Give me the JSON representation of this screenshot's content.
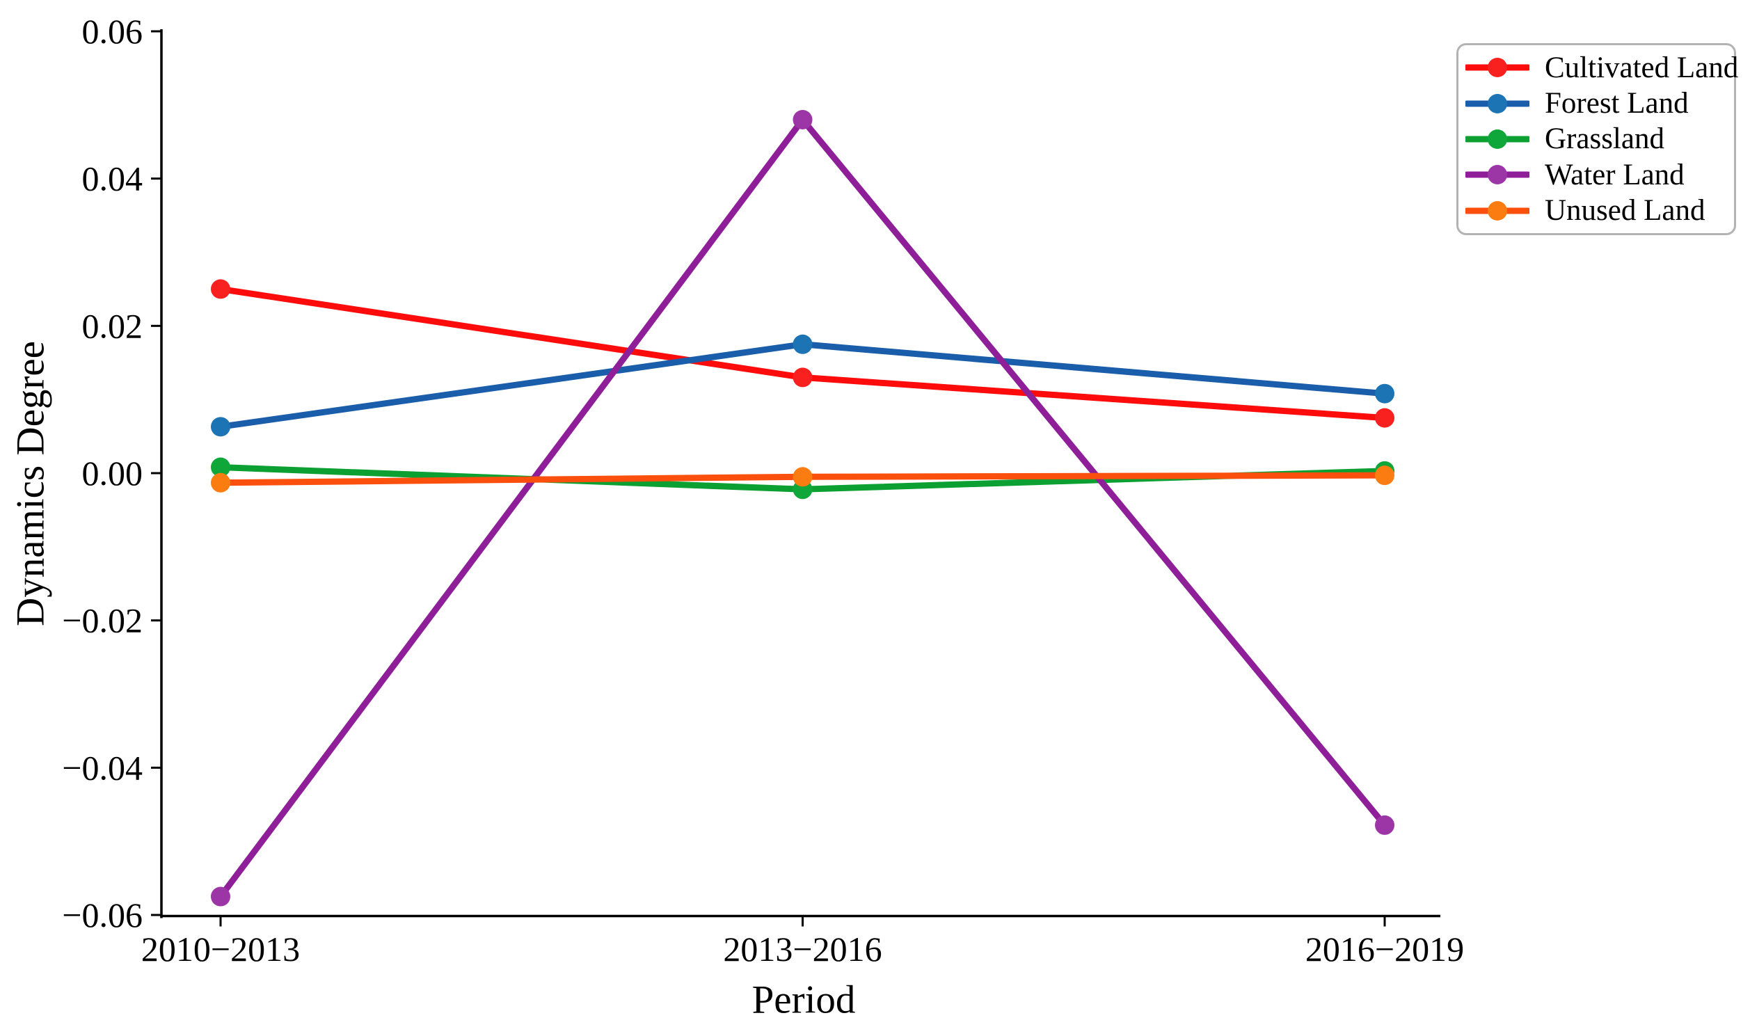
{
  "figure": {
    "background": "#ffffff"
  },
  "chart_data": {
    "type": "line",
    "title": "",
    "xlabel": "Period",
    "ylabel": "Dynamics Degree",
    "categories": [
      "2010−2013",
      "2013−2016",
      "2016−2019"
    ],
    "ylim": [
      -0.06,
      0.06
    ],
    "yticks": {
      "values": [
        0.06,
        0.04,
        0.02,
        0.0,
        -0.02,
        -0.04,
        -0.06
      ],
      "labels": [
        "0.06",
        "0.04",
        "0.02",
        "0.00",
        "−0.02",
        "−0.04",
        "−0.06"
      ]
    },
    "grid": false,
    "legend_position": "upper-right",
    "series": [
      {
        "name": "Cultivated Land",
        "color": "#fe0b0b",
        "marker_color": "#f92020",
        "values": [
          0.025,
          0.013,
          0.0075
        ]
      },
      {
        "name": "Forest Land",
        "color": "#1a5dab",
        "marker_color": "#1d74b4",
        "values": [
          0.0063,
          0.0175,
          0.0108
        ]
      },
      {
        "name": "Grassland",
        "color": "#0ca033",
        "marker_color": "#0fa73a",
        "values": [
          0.0008,
          -0.0022,
          0.0003
        ]
      },
      {
        "name": "Water Land",
        "color": "#8e1f99",
        "marker_color": "#9c35a5",
        "values": [
          -0.0575,
          0.048,
          -0.0478
        ]
      },
      {
        "name": "Unused Land",
        "color": "#fb4f0e",
        "marker_color": "#fb7d12",
        "values": [
          -0.0013,
          -0.0005,
          -0.0003
        ]
      }
    ]
  }
}
